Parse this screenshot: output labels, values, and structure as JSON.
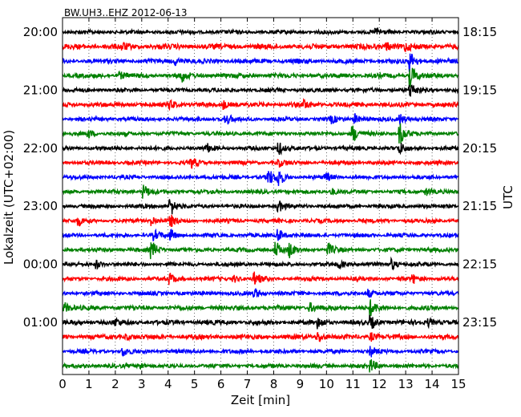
{
  "chart_data": {
    "type": "line",
    "title": "BW.UH3..EHZ 2012-06-13",
    "xlabel": "Zeit  [min]",
    "ylabel_left": "Lokalzeit (UTC+02:00)",
    "ylabel_right": "UTC",
    "xlim": [
      0,
      15
    ],
    "x_ticks": [
      "0",
      "1",
      "2",
      "3",
      "4",
      "5",
      "6",
      "7",
      "8",
      "9",
      "10",
      "11",
      "12",
      "13",
      "14",
      "15"
    ],
    "y_ticks_left": [
      {
        "row": 0,
        "label": "20:00"
      },
      {
        "row": 4,
        "label": "21:00"
      },
      {
        "row": 8,
        "label": "22:00"
      },
      {
        "row": 12,
        "label": "23:00"
      },
      {
        "row": 16,
        "label": "00:00"
      },
      {
        "row": 20,
        "label": "01:00"
      }
    ],
    "y_ticks_right": [
      {
        "row": 0,
        "label": "18:15"
      },
      {
        "row": 4,
        "label": "19:15"
      },
      {
        "row": 8,
        "label": "20:15"
      },
      {
        "row": 12,
        "label": "21:15"
      },
      {
        "row": 16,
        "label": "22:15"
      },
      {
        "row": 20,
        "label": "23:15"
      }
    ],
    "rows": 24,
    "grid": "vertical-dotted",
    "colors": [
      "#000000",
      "#ff0000",
      "#0000ff",
      "#008000"
    ],
    "series": [
      {
        "row": 0,
        "amp": 0.6,
        "events": [
          {
            "x": 11.9,
            "a": 1.0
          }
        ]
      },
      {
        "row": 1,
        "amp": 0.8,
        "events": [
          {
            "x": 2.3,
            "a": 0.8
          },
          {
            "x": 12.3,
            "a": 1.2
          },
          {
            "x": 13.0,
            "a": 1.0
          }
        ]
      },
      {
        "row": 2,
        "amp": 0.7,
        "events": [
          {
            "x": 4.3,
            "a": 1.0
          },
          {
            "x": 13.2,
            "a": 2.4
          }
        ]
      },
      {
        "row": 3,
        "amp": 0.7,
        "events": [
          {
            "x": 2.2,
            "a": 0.8
          },
          {
            "x": 4.5,
            "a": 1.8
          },
          {
            "x": 13.2,
            "a": 3.0
          }
        ]
      },
      {
        "row": 4,
        "amp": 0.6,
        "events": [
          {
            "x": 13.2,
            "a": 2.0
          }
        ]
      },
      {
        "row": 5,
        "amp": 0.7,
        "events": [
          {
            "x": 4.1,
            "a": 1.4
          },
          {
            "x": 6.1,
            "a": 1.2
          },
          {
            "x": 9.2,
            "a": 1.0
          }
        ]
      },
      {
        "row": 6,
        "amp": 0.6,
        "events": [
          {
            "x": 6.2,
            "a": 1.6
          },
          {
            "x": 10.2,
            "a": 1.0
          },
          {
            "x": 11.1,
            "a": 1.4
          },
          {
            "x": 12.8,
            "a": 1.4
          }
        ]
      },
      {
        "row": 7,
        "amp": 0.6,
        "events": [
          {
            "x": 1.0,
            "a": 1.0
          },
          {
            "x": 11.0,
            "a": 2.4
          },
          {
            "x": 12.8,
            "a": 3.0
          }
        ]
      },
      {
        "row": 8,
        "amp": 0.6,
        "events": [
          {
            "x": 5.5,
            "a": 1.0
          },
          {
            "x": 8.2,
            "a": 2.0
          },
          {
            "x": 12.8,
            "a": 1.4
          }
        ]
      },
      {
        "row": 9,
        "amp": 0.6,
        "events": [
          {
            "x": 4.9,
            "a": 1.4
          },
          {
            "x": 8.2,
            "a": 1.0
          }
        ]
      },
      {
        "row": 10,
        "amp": 0.6,
        "events": [
          {
            "x": 7.8,
            "a": 2.4
          },
          {
            "x": 8.2,
            "a": 2.4
          },
          {
            "x": 10.0,
            "a": 1.0
          }
        ]
      },
      {
        "row": 11,
        "amp": 0.6,
        "events": [
          {
            "x": 3.1,
            "a": 1.8
          },
          {
            "x": 10.2,
            "a": 1.0
          },
          {
            "x": 13.8,
            "a": 1.0
          }
        ]
      },
      {
        "row": 12,
        "amp": 0.6,
        "events": [
          {
            "x": 4.1,
            "a": 2.8
          },
          {
            "x": 8.2,
            "a": 1.4
          }
        ]
      },
      {
        "row": 13,
        "amp": 0.6,
        "events": [
          {
            "x": 0.6,
            "a": 1.2
          },
          {
            "x": 3.4,
            "a": 1.4
          },
          {
            "x": 4.1,
            "a": 1.6
          }
        ]
      },
      {
        "row": 14,
        "amp": 0.6,
        "events": [
          {
            "x": 3.5,
            "a": 1.2
          },
          {
            "x": 4.1,
            "a": 1.4
          },
          {
            "x": 8.2,
            "a": 1.8
          }
        ]
      },
      {
        "row": 15,
        "amp": 0.6,
        "events": [
          {
            "x": 3.4,
            "a": 2.2
          },
          {
            "x": 8.1,
            "a": 2.2
          },
          {
            "x": 8.6,
            "a": 2.0
          },
          {
            "x": 10.1,
            "a": 1.6
          }
        ]
      },
      {
        "row": 16,
        "amp": 0.6,
        "events": [
          {
            "x": 1.3,
            "a": 1.0
          },
          {
            "x": 10.5,
            "a": 1.0
          },
          {
            "x": 12.5,
            "a": 1.4
          }
        ]
      },
      {
        "row": 17,
        "amp": 0.6,
        "events": [
          {
            "x": 4.1,
            "a": 1.4
          },
          {
            "x": 6.5,
            "a": 1.0
          },
          {
            "x": 7.3,
            "a": 1.8
          },
          {
            "x": 13.3,
            "a": 1.0
          }
        ]
      },
      {
        "row": 18,
        "amp": 0.6,
        "events": [
          {
            "x": 7.3,
            "a": 1.2
          },
          {
            "x": 11.6,
            "a": 1.2
          }
        ]
      },
      {
        "row": 19,
        "amp": 0.7,
        "events": [
          {
            "x": 0.1,
            "a": 1.2
          },
          {
            "x": 9.4,
            "a": 1.2
          },
          {
            "x": 11.7,
            "a": 2.0
          }
        ]
      },
      {
        "row": 20,
        "amp": 0.7,
        "events": [
          {
            "x": 2.0,
            "a": 1.0
          },
          {
            "x": 9.7,
            "a": 1.4
          },
          {
            "x": 11.7,
            "a": 1.6
          },
          {
            "x": 13.9,
            "a": 1.0
          }
        ]
      },
      {
        "row": 21,
        "amp": 0.7,
        "events": [
          {
            "x": 2.4,
            "a": 1.0
          },
          {
            "x": 9.7,
            "a": 1.6
          },
          {
            "x": 11.7,
            "a": 1.2
          }
        ]
      },
      {
        "row": 22,
        "amp": 0.6,
        "events": [
          {
            "x": 2.3,
            "a": 1.2
          },
          {
            "x": 11.7,
            "a": 1.2
          }
        ]
      },
      {
        "row": 23,
        "amp": 0.6,
        "events": [
          {
            "x": 2.9,
            "a": 1.2
          },
          {
            "x": 11.7,
            "a": 1.6
          }
        ]
      }
    ]
  }
}
